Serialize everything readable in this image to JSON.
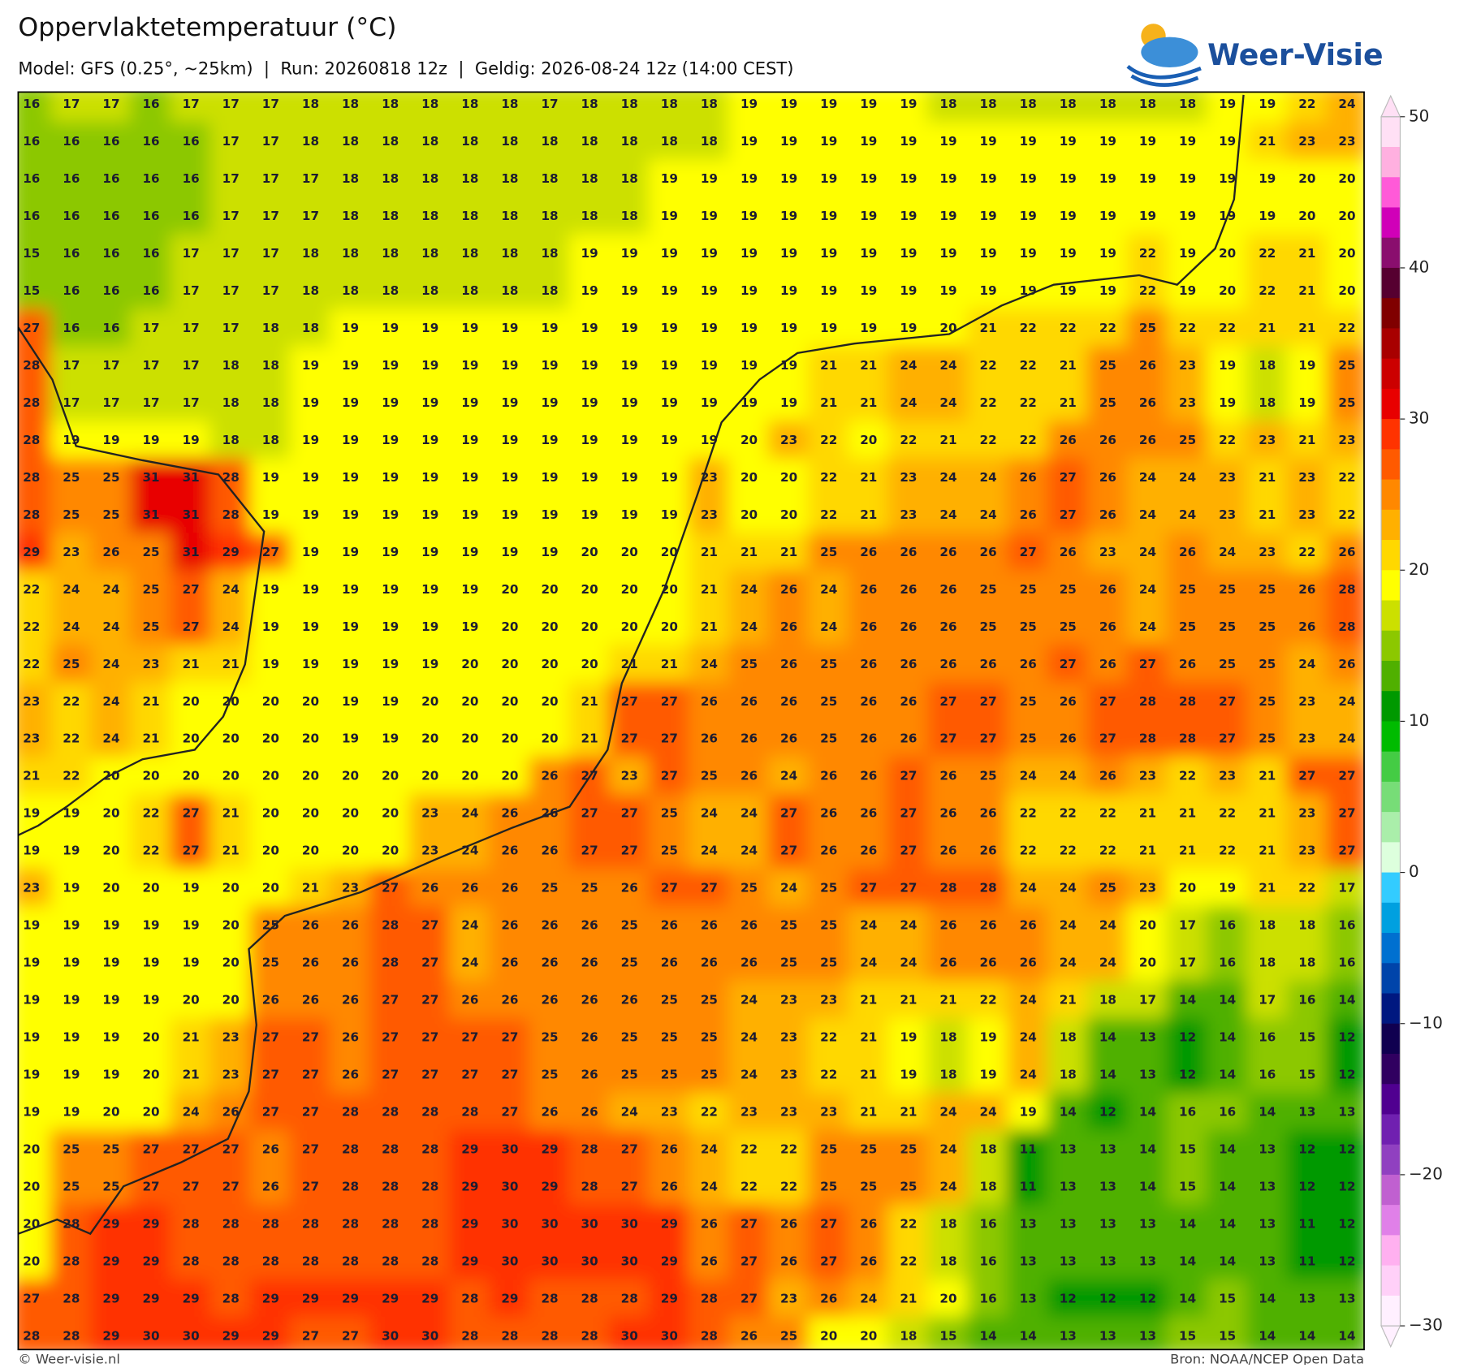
{
  "header": {
    "title": "Oppervlaktetemperatuur (°C)",
    "subtitle": "Model: GFS (0.25°, ~25km)  |  Run: 20260818 12z  |  Geldig: 2026-08-24 12z (14:00 CEST)",
    "logo": "Weer-Visie"
  },
  "map": {
    "grid": [
      [
        16,
        17,
        17,
        16,
        17,
        17,
        17,
        18,
        18,
        18,
        18,
        18,
        18,
        17,
        18,
        18,
        18,
        18,
        19,
        19,
        19,
        19,
        19,
        18,
        18,
        18,
        18,
        18,
        18,
        18,
        19,
        19,
        22,
        24
      ],
      [
        16,
        16,
        16,
        16,
        16,
        17,
        17,
        18,
        18,
        18,
        18,
        18,
        18,
        18,
        18,
        18,
        18,
        18,
        19,
        19,
        19,
        19,
        19,
        19,
        19,
        19,
        19,
        19,
        19,
        19,
        19,
        21,
        23,
        23
      ],
      [
        16,
        16,
        16,
        16,
        16,
        17,
        17,
        17,
        18,
        18,
        18,
        18,
        18,
        18,
        18,
        18,
        19,
        19,
        19,
        19,
        19,
        19,
        19,
        19,
        19,
        19,
        19,
        19,
        19,
        19,
        19,
        19,
        20,
        20
      ],
      [
        16,
        16,
        16,
        16,
        16,
        17,
        17,
        17,
        18,
        18,
        18,
        18,
        18,
        18,
        18,
        18,
        19,
        19,
        19,
        19,
        19,
        19,
        19,
        19,
        19,
        19,
        19,
        19,
        19,
        19,
        19,
        19,
        20,
        20
      ],
      [
        15,
        16,
        16,
        16,
        17,
        17,
        17,
        18,
        18,
        18,
        18,
        18,
        18,
        18,
        19,
        19,
        19,
        19,
        19,
        19,
        19,
        19,
        19,
        19,
        19,
        19,
        19,
        19,
        22,
        19,
        20,
        22,
        21,
        20
      ],
      [
        15,
        16,
        16,
        16,
        17,
        17,
        17,
        18,
        18,
        18,
        18,
        18,
        18,
        18,
        19,
        19,
        19,
        19,
        19,
        19,
        19,
        19,
        19,
        19,
        19,
        19,
        19,
        19,
        22,
        19,
        20,
        22,
        21,
        20
      ],
      [
        27,
        16,
        16,
        17,
        17,
        17,
        18,
        18,
        19,
        19,
        19,
        19,
        19,
        19,
        19,
        19,
        19,
        19,
        19,
        19,
        19,
        19,
        19,
        20,
        21,
        22,
        22,
        22,
        25,
        22,
        22,
        21,
        21,
        22
      ],
      [
        28,
        17,
        17,
        17,
        17,
        18,
        18,
        19,
        19,
        19,
        19,
        19,
        19,
        19,
        19,
        19,
        19,
        19,
        19,
        19,
        21,
        21,
        24,
        24,
        22,
        22,
        21,
        25,
        26,
        23,
        19,
        18,
        19,
        25
      ],
      [
        28,
        17,
        17,
        17,
        17,
        18,
        18,
        19,
        19,
        19,
        19,
        19,
        19,
        19,
        19,
        19,
        19,
        19,
        19,
        19,
        21,
        21,
        24,
        24,
        22,
        22,
        21,
        25,
        26,
        23,
        19,
        18,
        19,
        25
      ],
      [
        28,
        19,
        19,
        19,
        19,
        18,
        18,
        19,
        19,
        19,
        19,
        19,
        19,
        19,
        19,
        19,
        19,
        19,
        20,
        23,
        22,
        20,
        22,
        21,
        22,
        22,
        26,
        26,
        26,
        25,
        22,
        23,
        21,
        23
      ],
      [
        28,
        25,
        25,
        31,
        31,
        28,
        19,
        19,
        19,
        19,
        19,
        19,
        19,
        19,
        19,
        19,
        19,
        23,
        20,
        20,
        22,
        21,
        23,
        24,
        24,
        26,
        27,
        26,
        24,
        24,
        23,
        21,
        23,
        22
      ],
      [
        28,
        25,
        25,
        31,
        31,
        28,
        19,
        19,
        19,
        19,
        19,
        19,
        19,
        19,
        19,
        19,
        19,
        23,
        20,
        20,
        22,
        21,
        23,
        24,
        24,
        26,
        27,
        26,
        24,
        24,
        23,
        21,
        23,
        22
      ],
      [
        29,
        23,
        26,
        25,
        31,
        29,
        27,
        19,
        19,
        19,
        19,
        19,
        19,
        19,
        20,
        20,
        20,
        21,
        21,
        21,
        25,
        26,
        26,
        26,
        26,
        27,
        26,
        23,
        24,
        26,
        24,
        23,
        22,
        26
      ],
      [
        22,
        24,
        24,
        25,
        27,
        24,
        19,
        19,
        19,
        19,
        19,
        19,
        20,
        20,
        20,
        20,
        20,
        21,
        24,
        26,
        24,
        26,
        26,
        26,
        25,
        25,
        25,
        26,
        24,
        25,
        25,
        25,
        26,
        28
      ],
      [
        22,
        24,
        24,
        25,
        27,
        24,
        19,
        19,
        19,
        19,
        19,
        19,
        20,
        20,
        20,
        20,
        20,
        21,
        24,
        26,
        24,
        26,
        26,
        26,
        25,
        25,
        25,
        26,
        24,
        25,
        25,
        25,
        26,
        28
      ],
      [
        22,
        25,
        24,
        23,
        21,
        21,
        19,
        19,
        19,
        19,
        19,
        20,
        20,
        20,
        20,
        21,
        21,
        24,
        25,
        26,
        25,
        26,
        26,
        26,
        26,
        26,
        27,
        26,
        27,
        26,
        25,
        25,
        24,
        26
      ],
      [
        23,
        22,
        24,
        21,
        20,
        20,
        20,
        20,
        19,
        19,
        20,
        20,
        20,
        20,
        21,
        27,
        27,
        26,
        26,
        26,
        25,
        26,
        26,
        27,
        27,
        25,
        26,
        27,
        28,
        28,
        27,
        25,
        23,
        24
      ],
      [
        23,
        22,
        24,
        21,
        20,
        20,
        20,
        20,
        19,
        19,
        20,
        20,
        20,
        20,
        21,
        27,
        27,
        26,
        26,
        26,
        25,
        26,
        26,
        27,
        27,
        25,
        26,
        27,
        28,
        28,
        27,
        25,
        23,
        24
      ],
      [
        21,
        22,
        20,
        20,
        20,
        20,
        20,
        20,
        20,
        20,
        20,
        20,
        20,
        26,
        27,
        23,
        27,
        25,
        26,
        24,
        26,
        26,
        27,
        26,
        25,
        24,
        24,
        26,
        23,
        22,
        23,
        21,
        27,
        27
      ],
      [
        19,
        19,
        20,
        22,
        27,
        21,
        20,
        20,
        20,
        20,
        23,
        24,
        26,
        26,
        27,
        27,
        25,
        24,
        24,
        27,
        26,
        26,
        27,
        26,
        26,
        22,
        22,
        22,
        21,
        21,
        22,
        21,
        23,
        27
      ],
      [
        19,
        19,
        20,
        22,
        27,
        21,
        20,
        20,
        20,
        20,
        23,
        24,
        26,
        26,
        27,
        27,
        25,
        24,
        24,
        27,
        26,
        26,
        27,
        26,
        26,
        22,
        22,
        22,
        21,
        21,
        22,
        21,
        23,
        27
      ],
      [
        23,
        19,
        20,
        20,
        19,
        20,
        20,
        21,
        23,
        27,
        26,
        26,
        26,
        25,
        25,
        26,
        27,
        27,
        25,
        24,
        25,
        27,
        27,
        28,
        28,
        24,
        24,
        25,
        23,
        20,
        19,
        21,
        22,
        17
      ],
      [
        19,
        19,
        19,
        19,
        19,
        20,
        25,
        26,
        26,
        28,
        27,
        24,
        26,
        26,
        26,
        25,
        26,
        26,
        26,
        25,
        25,
        24,
        24,
        26,
        26,
        26,
        24,
        24,
        20,
        17,
        16,
        18,
        18,
        16
      ],
      [
        19,
        19,
        19,
        19,
        19,
        20,
        25,
        26,
        26,
        28,
        27,
        24,
        26,
        26,
        26,
        25,
        26,
        26,
        26,
        25,
        25,
        24,
        24,
        26,
        26,
        26,
        24,
        24,
        20,
        17,
        16,
        18,
        18,
        16
      ],
      [
        19,
        19,
        19,
        19,
        20,
        20,
        26,
        26,
        26,
        27,
        27,
        26,
        26,
        26,
        26,
        26,
        25,
        25,
        24,
        23,
        23,
        21,
        21,
        21,
        22,
        24,
        21,
        18,
        17,
        14,
        14,
        17,
        16,
        14
      ],
      [
        19,
        19,
        19,
        20,
        21,
        23,
        27,
        27,
        26,
        27,
        27,
        27,
        27,
        25,
        26,
        25,
        25,
        25,
        24,
        23,
        22,
        21,
        19,
        18,
        19,
        24,
        18,
        14,
        13,
        12,
        14,
        16,
        15,
        12
      ],
      [
        19,
        19,
        19,
        20,
        21,
        23,
        27,
        27,
        26,
        27,
        27,
        27,
        27,
        25,
        26,
        25,
        25,
        25,
        24,
        23,
        22,
        21,
        19,
        18,
        19,
        24,
        18,
        14,
        13,
        12,
        14,
        16,
        15,
        12
      ],
      [
        19,
        19,
        20,
        20,
        24,
        26,
        27,
        27,
        28,
        28,
        28,
        28,
        27,
        26,
        26,
        24,
        23,
        22,
        23,
        23,
        23,
        21,
        21,
        24,
        24,
        19,
        14,
        12,
        14,
        16,
        16,
        14,
        13,
        13
      ],
      [
        20,
        25,
        25,
        27,
        27,
        27,
        26,
        27,
        28,
        28,
        28,
        29,
        30,
        29,
        28,
        27,
        26,
        24,
        22,
        22,
        25,
        25,
        25,
        24,
        18,
        11,
        13,
        13,
        14,
        15,
        14,
        13,
        12,
        12
      ],
      [
        20,
        25,
        25,
        27,
        27,
        27,
        26,
        27,
        28,
        28,
        28,
        29,
        30,
        29,
        28,
        27,
        26,
        24,
        22,
        22,
        25,
        25,
        25,
        24,
        18,
        11,
        13,
        13,
        14,
        15,
        14,
        13,
        12,
        12
      ],
      [
        20,
        28,
        29,
        29,
        28,
        28,
        28,
        28,
        28,
        28,
        28,
        29,
        30,
        30,
        30,
        30,
        29,
        26,
        27,
        26,
        27,
        26,
        22,
        18,
        16,
        13,
        13,
        13,
        13,
        14,
        14,
        13,
        11,
        12
      ],
      [
        20,
        28,
        29,
        29,
        28,
        28,
        28,
        28,
        28,
        28,
        28,
        29,
        30,
        30,
        30,
        30,
        29,
        26,
        27,
        26,
        27,
        26,
        22,
        18,
        16,
        13,
        13,
        13,
        13,
        14,
        14,
        13,
        11,
        12
      ],
      [
        27,
        28,
        29,
        29,
        29,
        28,
        29,
        29,
        29,
        29,
        29,
        28,
        29,
        28,
        28,
        28,
        29,
        28,
        27,
        23,
        26,
        24,
        21,
        20,
        16,
        13,
        12,
        12,
        12,
        14,
        15,
        14,
        13,
        13
      ],
      [
        28,
        28,
        29,
        30,
        30,
        29,
        29,
        27,
        27,
        30,
        30,
        28,
        28,
        28,
        28,
        30,
        30,
        28,
        26,
        25,
        20,
        20,
        18,
        15,
        14,
        14,
        13,
        13,
        13,
        15,
        15,
        14,
        14,
        14
      ]
    ]
  },
  "colorbar": {
    "ylim": [
      -30,
      50
    ],
    "ticks": [
      50,
      40,
      30,
      20,
      10,
      0,
      {
        "value": -10,
        "label": "−10"
      },
      {
        "value": -20,
        "label": "−20"
      },
      {
        "value": -30,
        "label": "−30"
      }
    ],
    "colors": [
      "#ffe0f5",
      "#ffb0e0",
      "#ff5ad8",
      "#d000b8",
      "#8a0e6e",
      "#560030",
      "#800000",
      "#a80000",
      "#cc0000",
      "#e80000",
      "#ff3300",
      "#ff5a00",
      "#ff8800",
      "#ffb000",
      "#ffd800",
      "#ffff00",
      "#cce000",
      "#8cc800",
      "#50b000",
      "#009900",
      "#00bb00",
      "#44cc44",
      "#77dd77",
      "#aaeeaa",
      "#ddffdd",
      "#33ccff",
      "#00a0e0",
      "#0070d0",
      "#0044aa",
      "#001880",
      "#100050",
      "#300060",
      "#500090",
      "#7020b0",
      "#9040c0",
      "#c060d0",
      "#e080e8",
      "#ffb0f0",
      "#ffd0f8",
      "#fff0ff"
    ]
  },
  "footer": {
    "left": "© Weer-visie.nl",
    "right": "Bron: NOAA/NCEP Open Data"
  }
}
